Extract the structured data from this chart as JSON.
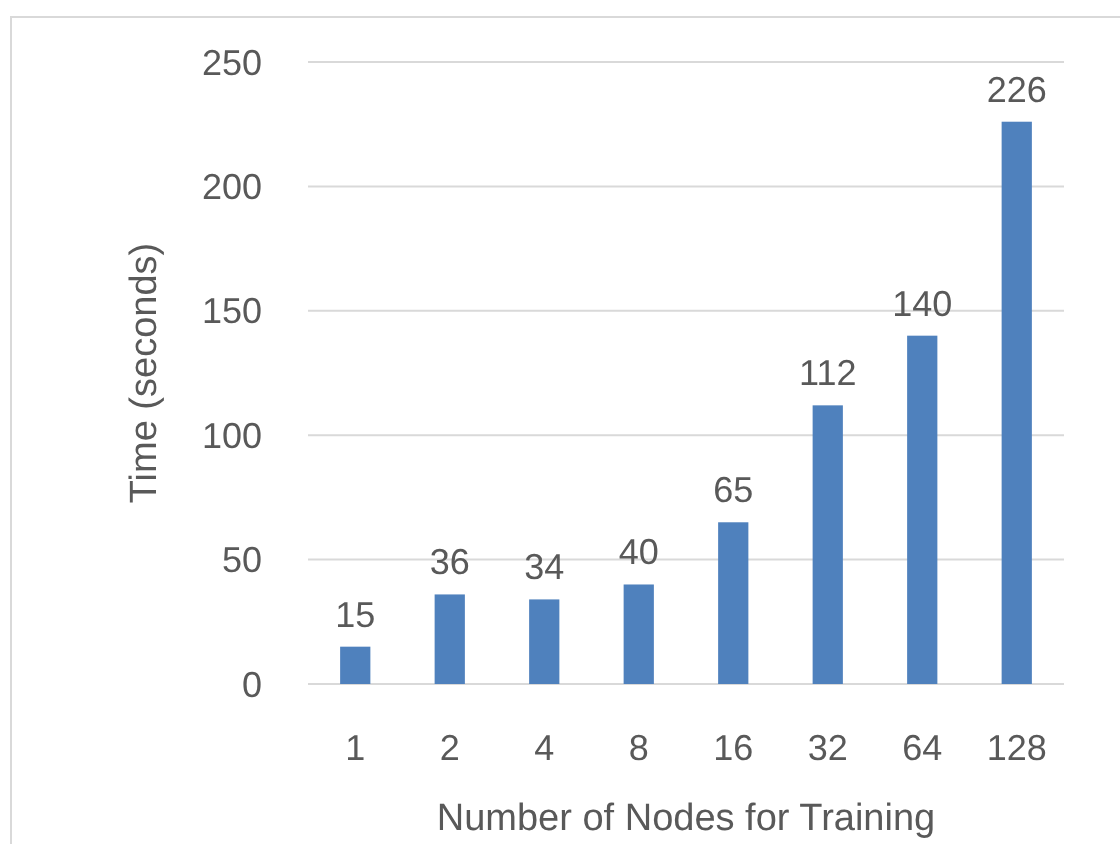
{
  "chart_data": {
    "type": "bar",
    "xlabel": "Number of Nodes for Training",
    "ylabel": "Time (seconds)",
    "categories": [
      "1",
      "2",
      "4",
      "8",
      "16",
      "32",
      "64",
      "128"
    ],
    "values": [
      15,
      36,
      34,
      40,
      65,
      112,
      140,
      226
    ],
    "color": "#4f81bd",
    "ylim": [
      0,
      250
    ],
    "yticks": [
      0,
      50,
      100,
      150,
      200,
      250
    ],
    "grid": "y",
    "data_labels": true
  }
}
